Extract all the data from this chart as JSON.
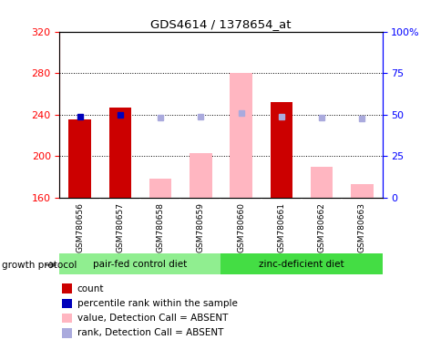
{
  "title": "GDS4614 / 1378654_at",
  "samples": [
    "GSM780656",
    "GSM780657",
    "GSM780658",
    "GSM780659",
    "GSM780660",
    "GSM780661",
    "GSM780662",
    "GSM780663"
  ],
  "count_present": {
    "GSM780656": 235,
    "GSM780657": 247,
    "GSM780661": 252
  },
  "count_absent": {
    "GSM780658": 178,
    "GSM780659": 203,
    "GSM780660": 280,
    "GSM780662": 190,
    "GSM780663": 173
  },
  "rank_present": {
    "GSM780656": 49,
    "GSM780657": 50
  },
  "rank_absent": {
    "GSM780658": 48,
    "GSM780659": 49,
    "GSM780660": 51,
    "GSM780661": 49,
    "GSM780662": 48,
    "GSM780663": 47.5
  },
  "ylim_left": [
    160,
    320
  ],
  "ylim_right": [
    0,
    100
  ],
  "yticks_left": [
    160,
    200,
    240,
    280,
    320
  ],
  "yticks_right": [
    0,
    25,
    50,
    75,
    100
  ],
  "ytick_labels_right": [
    "0",
    "25",
    "50",
    "75",
    "100%"
  ],
  "color_red": "#CC0000",
  "color_pink": "#FFB6C1",
  "color_blue": "#0000BB",
  "color_lightblue": "#AAAADD",
  "group_info": [
    {
      "name": "pair-fed control diet",
      "start": 0,
      "end": 3,
      "color": "#90EE90"
    },
    {
      "name": "zinc-deficient diet",
      "start": 4,
      "end": 7,
      "color": "#44DD44"
    }
  ],
  "legend_items": [
    {
      "color": "#CC0000",
      "label": "count"
    },
    {
      "color": "#0000BB",
      "label": "percentile rank within the sample"
    },
    {
      "color": "#FFB6C1",
      "label": "value, Detection Call = ABSENT"
    },
    {
      "color": "#AAAADD",
      "label": "rank, Detection Call = ABSENT"
    }
  ]
}
